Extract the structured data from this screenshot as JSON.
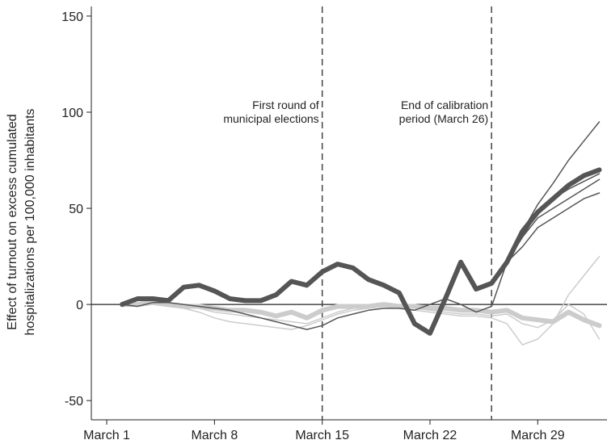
{
  "chart_data": {
    "type": "line",
    "y_label": [
      "Effect of turnout on excess cumulated",
      "hospitalizations per 100,000 inhabitants"
    ],
    "x": [
      2,
      3,
      4,
      5,
      6,
      7,
      8,
      9,
      10,
      11,
      12,
      13,
      14,
      15,
      16,
      17,
      18,
      19,
      20,
      21,
      22,
      23,
      24,
      25,
      26,
      27,
      28,
      29,
      30,
      31,
      32,
      33
    ],
    "series": [
      {
        "color": "#cccccc",
        "line_width": 1.5,
        "values": [
          0,
          0,
          0,
          -1,
          -2,
          -4,
          -7,
          -9,
          -10,
          -11,
          -12,
          -13,
          -11,
          -8,
          -5,
          -3,
          -2,
          -1,
          -2,
          -3,
          -4,
          -5,
          -6,
          -6,
          -7,
          -10,
          -21,
          -18,
          -10,
          5,
          15,
          25
        ]
      },
      {
        "color": "#cccccc",
        "line_width": 1.5,
        "values": [
          0,
          0,
          1,
          0,
          -1,
          -2,
          -4,
          -5,
          -6,
          -7,
          -8,
          -9,
          -10,
          -7,
          -4,
          -2,
          -1,
          0,
          -1,
          -2,
          -3,
          -4,
          -5,
          -5,
          -6,
          -5,
          -10,
          -12,
          -8,
          0,
          -5,
          -18
        ]
      },
      {
        "color": "#cccccc",
        "line_width": 6,
        "values": [
          0,
          0,
          1,
          0,
          -1,
          -1,
          -2,
          -3,
          -3,
          -4,
          -6,
          -4,
          -7,
          -3,
          -1,
          -1,
          -1,
          0,
          -1,
          -1,
          -2,
          -2,
          -3,
          -3,
          -4,
          -3,
          -7,
          -8,
          -9,
          -4,
          -8,
          -11
        ]
      },
      {
        "color": "#555555",
        "line_width": 1.5,
        "values": [
          0,
          -1,
          1,
          1,
          0,
          -1,
          -2,
          -3,
          -5,
          -7,
          -9,
          -11,
          -13,
          -11,
          -7,
          -5,
          -3,
          -2,
          -2,
          -3,
          0,
          3,
          0,
          -4,
          -1,
          22,
          35,
          48,
          55,
          60,
          64,
          68
        ]
      },
      {
        "color": "#555555",
        "line_width": 1.5,
        "values": [
          0,
          3,
          3,
          2,
          9,
          10,
          7,
          3,
          2,
          2,
          5,
          12,
          10,
          17,
          21,
          19,
          13,
          10,
          6,
          -10,
          -15,
          3,
          22,
          8,
          11,
          22,
          38,
          52,
          63,
          75,
          85,
          95
        ]
      },
      {
        "color": "#555555",
        "line_width": 1.5,
        "values": [
          0,
          3,
          3,
          2,
          9,
          10,
          7,
          3,
          2,
          2,
          5,
          12,
          10,
          17,
          21,
          19,
          13,
          10,
          6,
          -10,
          -15,
          3,
          22,
          8,
          11,
          22,
          35,
          45,
          50,
          55,
          60,
          65
        ]
      },
      {
        "color": "#555555",
        "line_width": 1.5,
        "values": [
          0,
          3,
          3,
          2,
          9,
          10,
          7,
          3,
          2,
          2,
          5,
          12,
          10,
          17,
          21,
          19,
          13,
          10,
          6,
          -10,
          -15,
          3,
          22,
          8,
          11,
          22,
          30,
          40,
          45,
          50,
          55,
          58
        ]
      },
      {
        "color": "#555555",
        "line_width": 6,
        "values": [
          0,
          3,
          3,
          2,
          9,
          10,
          7,
          3,
          2,
          2,
          5,
          12,
          10,
          17,
          21,
          19,
          13,
          10,
          6,
          -10,
          -15,
          3,
          22,
          8,
          11,
          22,
          38,
          48,
          55,
          62,
          67,
          70
        ]
      }
    ],
    "xlim": [
      0,
      33.5
    ],
    "xticks": [
      {
        "value": 1,
        "label": "March 1"
      },
      {
        "value": 8,
        "label": "March 8"
      },
      {
        "value": 15,
        "label": "March 15"
      },
      {
        "value": 22,
        "label": "March 22"
      },
      {
        "value": 29,
        "label": "March 29"
      }
    ],
    "ylim": [
      -60,
      155
    ],
    "yticks": [
      150,
      100,
      50,
      0,
      -50
    ],
    "reference_line_y": 0,
    "vlines": [
      {
        "x": 15,
        "label": [
          "First round of",
          "municipal elections"
        ]
      },
      {
        "x": 26,
        "label": [
          "End of calibration",
          "period (March 26)"
        ]
      }
    ],
    "grid": false
  }
}
